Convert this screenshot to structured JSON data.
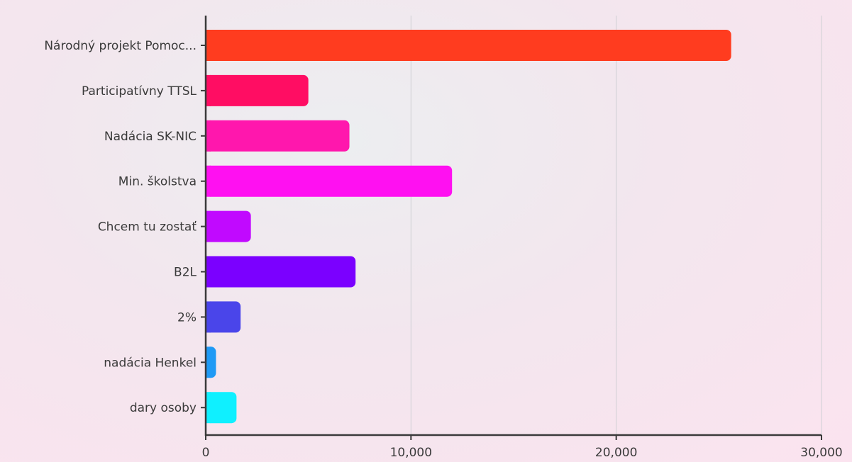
{
  "chart_data": {
    "type": "bar",
    "orientation": "horizontal",
    "title": "",
    "xlabel": "",
    "ylabel": "",
    "categories": [
      "Národný projekt Pomoc...",
      "Participatívny TTSL",
      "Nadácia SK-NIC",
      "Min. školstva",
      "Chcem tu zostať",
      "B2L",
      "2%",
      "nadácia Henkel",
      "dary osoby"
    ],
    "values": [
      25600,
      5000,
      7000,
      12000,
      2200,
      7300,
      1700,
      500,
      1500
    ],
    "colors": [
      "#ff3c1f",
      "#ff0d63",
      "#ff17ad",
      "#ff10f1",
      "#c109ff",
      "#7b00ff",
      "#4a45ea",
      "#1f9af5",
      "#0ff0ff"
    ],
    "xlim": [
      0,
      30000
    ],
    "xticks": [
      0,
      10000,
      20000,
      30000
    ],
    "xtick_labels": [
      "0",
      "10,000",
      "20,000",
      "30,000"
    ],
    "grid": true,
    "legend": "none"
  }
}
